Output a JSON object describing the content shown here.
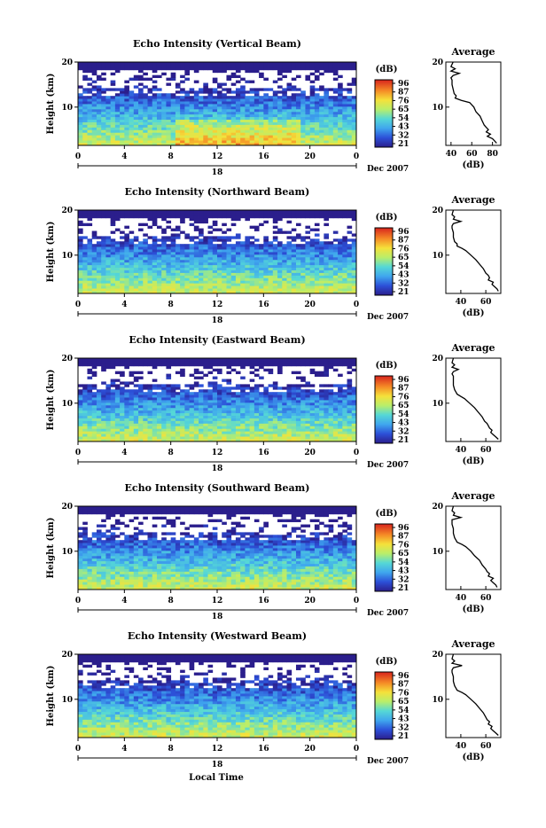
{
  "figure": {
    "xlabel": "Local Time",
    "date_label": "Dec 2007",
    "day_label": "18"
  },
  "chart_data": [
    {
      "type": "heatmap",
      "title": "Echo Intensity (Vertical Beam)",
      "ylabel": "Height (km)",
      "x_ticks": [
        "0",
        "4",
        "8",
        "12",
        "16",
        "20",
        "0"
      ],
      "y_ticks": [
        "20",
        "10"
      ],
      "xlim": [
        0,
        24
      ],
      "ylim": [
        1.5,
        20
      ],
      "colorbar": {
        "label": "(dB)",
        "ticks": [
          "96",
          "87",
          "76",
          "65",
          "54",
          "43",
          "32",
          "21"
        ]
      },
      "profile": {
        "title": "Average",
        "xlabel": "(dB)",
        "x_ticks": [
          "40",
          "60",
          "80"
        ],
        "xlim": [
          35,
          88
        ],
        "heights": [
          20,
          19,
          18.5,
          18,
          17.5,
          17,
          16.5,
          16,
          15,
          14,
          13,
          12.5,
          12,
          11.5,
          11,
          10,
          9,
          8,
          7,
          6,
          5.5,
          5,
          4.5,
          4,
          3.5,
          3,
          2.5,
          2
        ],
        "values": [
          42,
          40,
          44,
          40,
          48,
          42,
          40,
          41,
          41,
          42,
          43,
          45,
          44,
          50,
          58,
          62,
          64,
          68,
          70,
          72,
          74,
          76,
          74,
          78,
          75,
          80,
          82,
          84
        ]
      }
    },
    {
      "type": "heatmap",
      "title": "Echo Intensity (Northward Beam)",
      "ylabel": "Height (km)",
      "x_ticks": [
        "0",
        "4",
        "8",
        "12",
        "16",
        "20",
        "0"
      ],
      "y_ticks": [
        "20",
        "10"
      ],
      "xlim": [
        0,
        24
      ],
      "ylim": [
        1.5,
        20
      ],
      "colorbar": {
        "label": "(dB)",
        "ticks": [
          "96",
          "87",
          "76",
          "65",
          "54",
          "43",
          "32",
          "21"
        ]
      },
      "profile": {
        "title": "Average",
        "xlabel": "(dB)",
        "x_ticks": [
          "40",
          "60"
        ],
        "xlim": [
          28,
          72
        ],
        "heights": [
          20,
          19,
          18.5,
          18,
          17.5,
          17,
          16.5,
          16,
          15,
          14,
          13,
          12.5,
          12,
          11.5,
          11,
          10,
          9,
          8,
          7,
          6,
          5.5,
          5,
          4.5,
          4,
          3.5,
          3,
          2.5,
          2
        ],
        "values": [
          34,
          33,
          35,
          34,
          40,
          34,
          33,
          33,
          34,
          34,
          35,
          37,
          37,
          41,
          44,
          48,
          52,
          55,
          58,
          60,
          62,
          63,
          62,
          66,
          65,
          67,
          69,
          70
        ]
      }
    },
    {
      "type": "heatmap",
      "title": "Echo Intensity (Eastward Beam)",
      "ylabel": "Height (km)",
      "x_ticks": [
        "0",
        "4",
        "8",
        "12",
        "16",
        "20",
        "0"
      ],
      "y_ticks": [
        "20",
        "10"
      ],
      "xlim": [
        0,
        24
      ],
      "ylim": [
        1.5,
        20
      ],
      "colorbar": {
        "label": "(dB)",
        "ticks": [
          "96",
          "87",
          "76",
          "65",
          "54",
          "43",
          "32",
          "21"
        ]
      },
      "profile": {
        "title": "Average",
        "xlabel": "(dB)",
        "x_ticks": [
          "40",
          "60"
        ],
        "xlim": [
          28,
          72
        ],
        "heights": [
          20,
          19,
          18.5,
          18,
          17.5,
          17,
          16.5,
          16,
          15,
          14,
          13,
          12.5,
          12,
          11.5,
          11,
          10,
          9,
          8,
          7,
          6,
          5.5,
          5,
          4.5,
          4,
          3.5,
          3,
          2.5,
          2
        ],
        "values": [
          34,
          33,
          35,
          33,
          38,
          34,
          33,
          34,
          34,
          34,
          35,
          36,
          37,
          40,
          43,
          47,
          51,
          54,
          57,
          59,
          61,
          62,
          63,
          65,
          64,
          66,
          68,
          70
        ]
      }
    },
    {
      "type": "heatmap",
      "title": "Echo Intensity (Southward Beam)",
      "ylabel": "Height (km)",
      "x_ticks": [
        "0",
        "4",
        "8",
        "12",
        "16",
        "20",
        "0"
      ],
      "y_ticks": [
        "20",
        "10"
      ],
      "xlim": [
        0,
        24
      ],
      "ylim": [
        1.5,
        20
      ],
      "colorbar": {
        "label": "(dB)",
        "ticks": [
          "96",
          "87",
          "76",
          "65",
          "54",
          "43",
          "32",
          "21"
        ]
      },
      "profile": {
        "title": "Average",
        "xlabel": "(dB)",
        "x_ticks": [
          "40",
          "60"
        ],
        "xlim": [
          28,
          72
        ],
        "heights": [
          20,
          19,
          18.5,
          18,
          17.5,
          17,
          16.5,
          16,
          15,
          14,
          13,
          12.5,
          12,
          11.5,
          11,
          10,
          9,
          8,
          7,
          6,
          5.5,
          5,
          4.5,
          4,
          3.5,
          3,
          2.5,
          2
        ],
        "values": [
          34,
          33,
          35,
          34,
          40,
          33,
          33,
          33,
          34,
          34,
          35,
          36,
          37,
          41,
          44,
          48,
          51,
          55,
          57,
          60,
          61,
          63,
          62,
          66,
          64,
          66,
          68,
          69
        ]
      }
    },
    {
      "type": "heatmap",
      "title": "Echo Intensity (Westward Beam)",
      "ylabel": "Height (km)",
      "x_ticks": [
        "0",
        "4",
        "8",
        "12",
        "16",
        "20",
        "0"
      ],
      "y_ticks": [
        "20",
        "10"
      ],
      "xlim": [
        0,
        24
      ],
      "ylim": [
        1.5,
        20
      ],
      "colorbar": {
        "label": "(dB)",
        "ticks": [
          "96",
          "87",
          "76",
          "65",
          "54",
          "43",
          "32",
          "21"
        ]
      },
      "profile": {
        "title": "Average",
        "xlabel": "(dB)",
        "x_ticks": [
          "40",
          "60"
        ],
        "xlim": [
          28,
          72
        ],
        "heights": [
          20,
          19,
          18.5,
          18,
          17.5,
          17,
          16.5,
          16,
          15,
          14,
          13,
          12.5,
          12,
          11.5,
          11,
          10,
          9,
          8,
          7,
          6,
          5.5,
          5,
          4.5,
          4,
          3.5,
          3,
          2.5,
          2
        ],
        "values": [
          34,
          33,
          35,
          33,
          41,
          34,
          33,
          33,
          34,
          34,
          35,
          36,
          37,
          41,
          44,
          48,
          52,
          55,
          58,
          60,
          61,
          63,
          62,
          65,
          64,
          66,
          68,
          70
        ]
      }
    }
  ]
}
